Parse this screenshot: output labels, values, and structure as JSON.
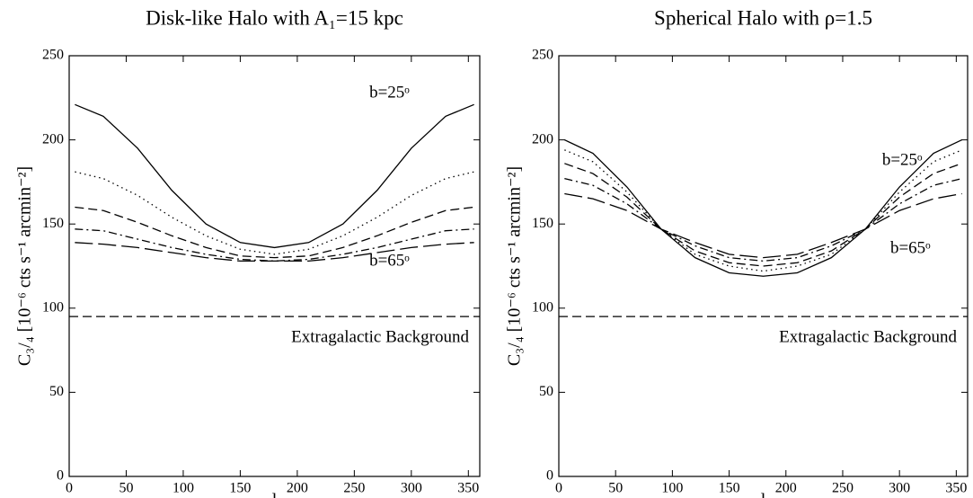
{
  "chart_data": [
    {
      "type": "line",
      "title": "Disk-like Halo with A₁=15 kpc",
      "xlabel": "l",
      "ylabel": "C₃/₄ [10⁻⁶ cts s⁻¹ arcmin⁻²]",
      "xlim": [
        0,
        360
      ],
      "ylim": [
        0,
        250
      ],
      "xticks": [
        0,
        50,
        100,
        150,
        200,
        250,
        300,
        350
      ],
      "yticks": [
        0,
        50,
        100,
        150,
        200,
        250
      ],
      "x": [
        5,
        30,
        60,
        90,
        120,
        150,
        180,
        210,
        240,
        270,
        300,
        330,
        355
      ],
      "series": [
        {
          "color": "#000000",
          "style": "solid",
          "values": [
            221,
            214,
            195,
            170,
            150,
            139,
            136,
            139,
            150,
            170,
            195,
            214,
            221
          ]
        },
        {
          "color": "#000000",
          "style": "dotted",
          "values": [
            181,
            177,
            167,
            154,
            143,
            135,
            132,
            135,
            143,
            154,
            167,
            177,
            181
          ]
        },
        {
          "color": "#000000",
          "style": "dashed",
          "values": [
            160,
            158,
            151,
            143,
            136,
            131,
            130,
            131,
            136,
            143,
            151,
            158,
            160
          ]
        },
        {
          "color": "#000000",
          "style": "dashdot",
          "values": [
            147,
            146,
            141,
            136,
            132,
            129,
            128,
            129,
            132,
            136,
            141,
            146,
            147
          ]
        },
        {
          "color": "#000000",
          "style": "longdash",
          "values": [
            139,
            138,
            136,
            133,
            130,
            128,
            128,
            128,
            130,
            133,
            136,
            138,
            139
          ]
        }
      ],
      "reference_line": {
        "value": 95,
        "label": "Extragalactic Background",
        "style": "dashed"
      },
      "annotations": [
        "b=25ᵒ",
        "b=65ᵒ"
      ]
    },
    {
      "type": "line",
      "title": "Spherical Halo with ρ=1.5",
      "xlabel": "l",
      "ylabel": "C₃/₄ [10⁻⁶ cts s⁻¹ arcmin⁻²]",
      "xlim": [
        0,
        360
      ],
      "ylim": [
        0,
        250
      ],
      "xticks": [
        0,
        50,
        100,
        150,
        200,
        250,
        300,
        350
      ],
      "yticks": [
        0,
        50,
        100,
        150,
        200,
        250
      ],
      "x": [
        5,
        30,
        60,
        90,
        120,
        150,
        180,
        210,
        240,
        270,
        300,
        330,
        355
      ],
      "series": [
        {
          "color": "#000000",
          "style": "solid",
          "values": [
            200,
            192,
            172,
            147,
            130,
            121,
            119,
            121,
            130,
            147,
            172,
            192,
            200
          ]
        },
        {
          "color": "#000000",
          "style": "dotted",
          "values": [
            194,
            187,
            169,
            147,
            132,
            125,
            122,
            125,
            132,
            147,
            169,
            187,
            194
          ]
        },
        {
          "color": "#000000",
          "style": "dashed",
          "values": [
            186,
            180,
            166,
            147,
            134,
            127,
            125,
            127,
            134,
            147,
            166,
            180,
            186
          ]
        },
        {
          "color": "#000000",
          "style": "dashdot",
          "values": [
            177,
            173,
            162,
            147,
            137,
            130,
            128,
            130,
            137,
            147,
            162,
            173,
            177
          ]
        },
        {
          "color": "#000000",
          "style": "longdash",
          "values": [
            168,
            165,
            158,
            147,
            139,
            132,
            130,
            132,
            139,
            147,
            158,
            165,
            168
          ]
        }
      ],
      "reference_line": {
        "value": 95,
        "label": "Extragalactic Background",
        "style": "dashed"
      },
      "annotations": [
        "b=25ᵒ",
        "b=65ᵒ"
      ]
    }
  ]
}
